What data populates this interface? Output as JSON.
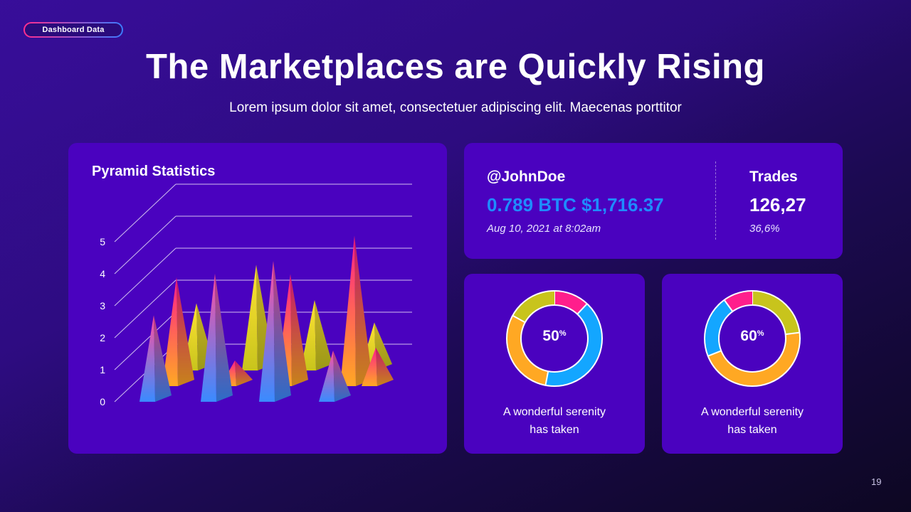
{
  "tag": "Dashboard Data",
  "title": "The Marketplaces are Quickly Rising",
  "subtitle": "Lorem ipsum dolor sit amet, consectetuer adipiscing elit. Maecenas porttitor",
  "page_number": "19",
  "colors": {
    "card": "#4a02bf",
    "btc": "#1e8cff",
    "pink": "#ff1e8c",
    "orange": "#ffa823",
    "yellow": "#c8c41c",
    "blue": "#13a6ff"
  },
  "pyramid_card": {
    "title": "Pyramid Statistics"
  },
  "chart_data": {
    "type": "3d-pyramid-bar",
    "title": "Pyramid Statistics",
    "yticks": [
      "0",
      "1",
      "2",
      "3",
      "4",
      "5"
    ],
    "ylim": [
      0,
      5
    ],
    "rows": [
      {
        "name": "back",
        "gradient": [
          "#ffe233",
          "#c8c41c"
        ],
        "values": [
          2.1,
          3.3,
          2.2,
          1.5,
          1.4
        ]
      },
      {
        "name": "middle",
        "gradient": [
          "#ff1e8c",
          "#ffa823"
        ],
        "values": [
          3.4,
          0.8,
          3.5,
          4.7,
          1.2
        ]
      },
      {
        "name": "front",
        "gradient": [
          "#ff4fa0",
          "#3a8bff"
        ],
        "values": [
          2.7,
          4.0,
          4.4,
          1.6
        ]
      }
    ]
  },
  "wallet": {
    "user": "@JohnDoe",
    "btc": "0.789 BTC $1,716.37",
    "date": "Aug 10,  2021 at 8:02am",
    "trades_label": "Trades",
    "trades_value": "126,27",
    "trades_pct": "36,6%"
  },
  "donuts": [
    {
      "percent": "50",
      "unit": "%",
      "caption_line1": "A wonderful serenity",
      "caption_line2": "has taken",
      "segments": [
        {
          "color": "#ff1e8c",
          "value": 12
        },
        {
          "color": "#13a6ff",
          "value": 41
        },
        {
          "color": "#ffa823",
          "value": 30
        },
        {
          "color": "#c8c41c",
          "value": 17
        }
      ]
    },
    {
      "percent": "60",
      "unit": "%",
      "caption_line1": "A wonderful serenity",
      "caption_line2": "has taken",
      "segments": [
        {
          "color": "#c8c41c",
          "value": 23
        },
        {
          "color": "#ffa823",
          "value": 46
        },
        {
          "color": "#13a6ff",
          "value": 21
        },
        {
          "color": "#ff1e8c",
          "value": 10
        }
      ]
    }
  ]
}
